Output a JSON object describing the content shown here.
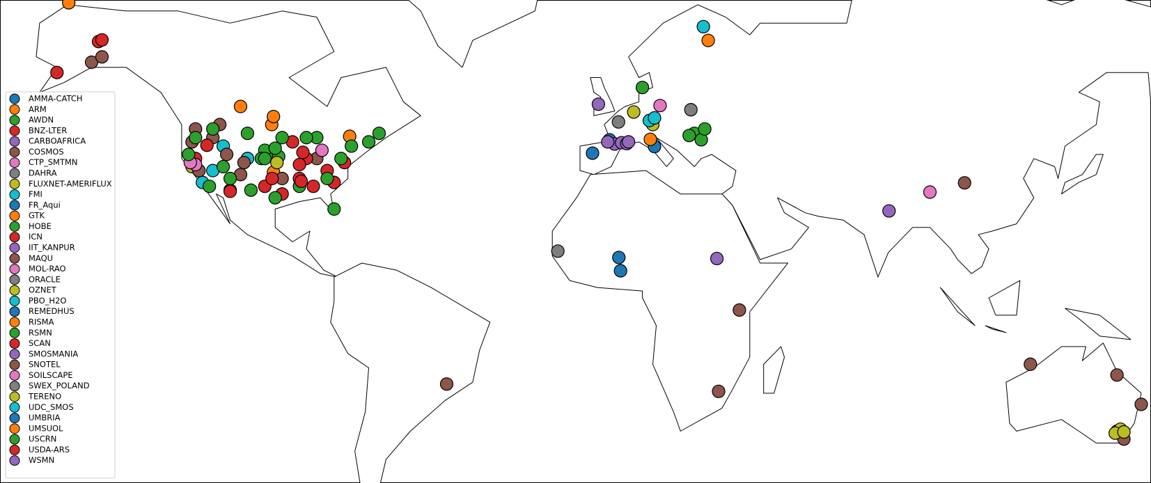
{
  "chart_data": {
    "type": "map",
    "series": [
      {
        "name": "AMMA-CATCH",
        "color": "#1f77b4",
        "lon": [
          2.7,
          2.2
        ],
        "lat": [
          9.8,
          13.6
        ]
      },
      {
        "name": "ARM",
        "color": "#ff7f0e",
        "lon": [
          -97.5,
          -156.6,
          -98.0
        ],
        "lat": [
          36.6,
          71.3,
          48.0
        ]
      },
      {
        "name": "AWDN",
        "color": "#2ca02c",
        "lon": [
          -98,
          -100,
          -96,
          -101,
          -97
        ],
        "lat": [
          41,
          42,
          40.5,
          40,
          42.5
        ]
      },
      {
        "name": "BNZ-LTER",
        "color": "#d62728",
        "lon": [
          -148,
          -147,
          -160
        ],
        "lat": [
          64.8,
          65.1,
          59
        ]
      },
      {
        "name": "CARBOAFRICA",
        "color": "#9467bd",
        "lon": [
          30.5
        ],
        "lat": [
          13.3
        ]
      },
      {
        "name": "COSMOS",
        "color": "#8c564b",
        "lon": [
          -110,
          -105,
          -120,
          -95,
          -85,
          37,
          31,
          121,
          146,
          153,
          -47.5,
          148
        ],
        "lat": [
          32,
          40,
          38,
          35,
          40,
          -1.5,
          -24.5,
          -17,
          -20,
          -28,
          -22.5,
          -37
        ]
      },
      {
        "name": "CTP_SMTMN",
        "color": "#e377c2",
        "lon": [
          92
        ],
        "lat": [
          31.5
        ]
      },
      {
        "name": "DAHRA",
        "color": "#7f7f7f",
        "lon": [
          -15.4
        ],
        "lat": [
          15.4
        ]
      },
      {
        "name": "FLUXNET-AMERIFLUX",
        "color": "#bcbd22",
        "lon": [
          -96.5,
          -121
        ],
        "lat": [
          39,
          38
        ]
      },
      {
        "name": "FMI",
        "color": "#17becf",
        "lon": [
          26.6
        ],
        "lat": [
          67.4
        ]
      },
      {
        "name": "FR_Aqui",
        "color": "#1f77b4",
        "lon": [
          -0.5
        ],
        "lat": [
          44.5
        ]
      },
      {
        "name": "GTK",
        "color": "#ff7f0e",
        "lon": [
          28
        ],
        "lat": [
          65
        ]
      },
      {
        "name": "HOBE",
        "color": "#2ca02c",
        "lon": [
          9
        ],
        "lat": [
          56
        ]
      },
      {
        "name": "ICN",
        "color": "#d62728",
        "lon": [
          -88,
          -89,
          -90
        ],
        "lat": [
          40,
          41.5,
          38.5
        ]
      },
      {
        "name": "IIT_KANPUR",
        "color": "#9467bd",
        "lon": [
          80.2
        ],
        "lat": [
          26.5
        ]
      },
      {
        "name": "MAQU",
        "color": "#8c564b",
        "lon": [
          102
        ],
        "lat": [
          33.9
        ]
      },
      {
        "name": "MOL-RAO",
        "color": "#e377c2",
        "lon": [
          14.1
        ],
        "lat": [
          52.2
        ]
      },
      {
        "name": "ORACLE",
        "color": "#7f7f7f",
        "lon": [
          2.1
        ],
        "lat": [
          48.6
        ]
      },
      {
        "name": "OZNET",
        "color": "#bcbd22",
        "lon": [
          146,
          147,
          145.5,
          148
        ],
        "lat": [
          -35,
          -34.5,
          -35.5,
          -35.2
        ]
      },
      {
        "name": "PBO_H2O",
        "color": "#17becf",
        "lon": [
          -115,
          -118,
          -105,
          -112
        ],
        "lat": [
          37,
          34,
          40,
          43
        ]
      },
      {
        "name": "REMEDHUS",
        "color": "#1f77b4",
        "lon": [
          -5.4
        ],
        "lat": [
          41.3
        ]
      },
      {
        "name": "RISMA",
        "color": "#ff7f0e",
        "lon": [
          -97.5,
          -107,
          -75.5
        ],
        "lat": [
          49.8,
          52,
          45.3
        ]
      },
      {
        "name": "RSMN",
        "color": "#2ca02c",
        "lon": [
          24,
          26,
          27,
          22.5
        ],
        "lat": [
          46,
          44.5,
          47,
          45.5
        ]
      },
      {
        "name": "SCAN",
        "color": "#d62728",
        "lon": [
          -90,
          -86,
          -82,
          -77,
          -95,
          -100,
          -92,
          -120,
          -80
        ],
        "lat": [
          35,
          33,
          37,
          39,
          31,
          33,
          44,
          40,
          34
        ]
      },
      {
        "name": "SMOSMANIA",
        "color": "#9467bd",
        "lon": [
          1,
          3,
          -1,
          4.5,
          5
        ],
        "lat": [
          43.5,
          43.8,
          44,
          43.6,
          44
        ]
      },
      {
        "name": "SNOTEL",
        "color": "#8c564b",
        "lon": [
          -120,
          -115,
          -111,
          -106,
          -107,
          -121,
          -113,
          -119,
          -150,
          -147
        ],
        "lat": [
          47,
          45,
          41,
          39,
          36,
          44,
          48,
          37,
          61,
          62
        ]
      },
      {
        "name": "SOILSCAPE",
        "color": "#e377c2",
        "lon": [
          -120,
          -121.5,
          -83.5
        ],
        "lat": [
          38.5,
          39,
          42
        ]
      },
      {
        "name": "SWEX_POLAND",
        "color": "#7f7f7f",
        "lon": [
          23
        ],
        "lat": [
          51.3
        ]
      },
      {
        "name": "TERENO",
        "color": "#bcbd22",
        "lon": [
          6.5,
          12
        ],
        "lat": [
          50.8,
          48
        ]
      },
      {
        "name": "UDC_SMOS",
        "color": "#17becf",
        "lon": [
          11,
          12.5
        ],
        "lat": [
          48.9,
          49.5
        ]
      },
      {
        "name": "UMBRIA",
        "color": "#1f77b4",
        "lon": [
          12.5
        ],
        "lat": [
          42.9
        ]
      },
      {
        "name": "UMSUOL",
        "color": "#ff7f0e",
        "lon": [
          11.3
        ],
        "lat": [
          44.6
        ]
      },
      {
        "name": "USCRN",
        "color": "#2ca02c",
        "lon": [
          -80,
          -75,
          -70,
          -85,
          -95,
          -105,
          -115,
          -120,
          -110,
          -100,
          -90,
          -82,
          -122,
          -104,
          -97,
          -88,
          -78,
          -67,
          -112,
          -116
        ],
        "lat": [
          27,
          43,
          44,
          45,
          45,
          46,
          47,
          45,
          35,
          40,
          33,
          35,
          41,
          32,
          30,
          45,
          40,
          46,
          38,
          33
        ]
      },
      {
        "name": "USDA-ARS",
        "color": "#d62728",
        "lon": [
          -97.9,
          -110,
          -89.5,
          -116.7
        ],
        "lat": [
          35,
          31.7,
          34.3,
          43.2
        ]
      },
      {
        "name": "WSMN",
        "color": "#9467bd",
        "lon": [
          -3.7
        ],
        "lat": [
          52.5
        ]
      }
    ]
  }
}
